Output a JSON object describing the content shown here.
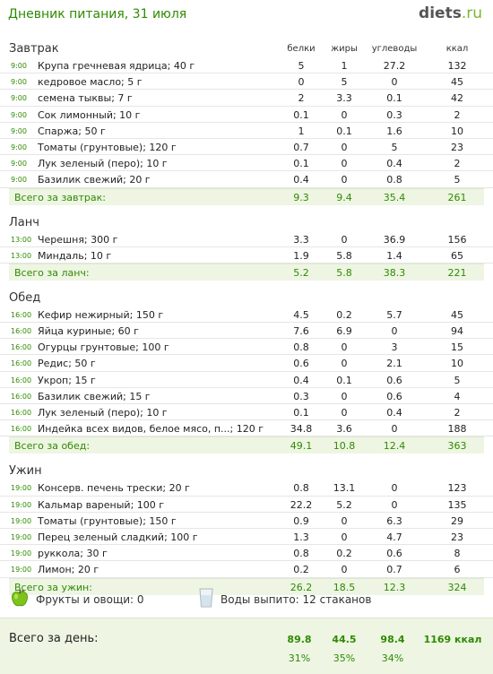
{
  "header": {
    "title": "Дневник питания, 31 июля",
    "logo_main": "diets",
    "logo_tld": ".ru"
  },
  "columns": {
    "protein": "белки",
    "fat": "жиры",
    "carbs": "углеводы",
    "kcal": "ккал"
  },
  "meals": [
    {
      "name": "Завтрак",
      "items": [
        {
          "time": "9:00",
          "name": "Крупа гречневая ядрица; 40 г",
          "p": "5",
          "f": "1",
          "c": "27.2",
          "k": "132"
        },
        {
          "time": "9:00",
          "name": "кедровое масло; 5 г",
          "p": "0",
          "f": "5",
          "c": "0",
          "k": "45"
        },
        {
          "time": "9:00",
          "name": "семена тыквы; 7 г",
          "p": "2",
          "f": "3.3",
          "c": "0.1",
          "k": "42"
        },
        {
          "time": "9:00",
          "name": "Сок лимонный; 10 г",
          "p": "0.1",
          "f": "0",
          "c": "0.3",
          "k": "2"
        },
        {
          "time": "9:00",
          "name": "Спаржа; 50 г",
          "p": "1",
          "f": "0.1",
          "c": "1.6",
          "k": "10"
        },
        {
          "time": "9:00",
          "name": "Томаты (грунтовые); 120 г",
          "p": "0.7",
          "f": "0",
          "c": "5",
          "k": "23"
        },
        {
          "time": "9:00",
          "name": "Лук зеленый (перо); 10 г",
          "p": "0.1",
          "f": "0",
          "c": "0.4",
          "k": "2"
        },
        {
          "time": "9:00",
          "name": "Базилик свежий; 20 г",
          "p": "0.4",
          "f": "0",
          "c": "0.8",
          "k": "5"
        }
      ],
      "total": {
        "label": "Всего за завтрак:",
        "p": "9.3",
        "f": "9.4",
        "c": "35.4",
        "k": "261"
      }
    },
    {
      "name": "Ланч",
      "items": [
        {
          "time": "13:00",
          "name": "Черешня; 300 г",
          "p": "3.3",
          "f": "0",
          "c": "36.9",
          "k": "156"
        },
        {
          "time": "13:00",
          "name": "Миндаль; 10 г",
          "p": "1.9",
          "f": "5.8",
          "c": "1.4",
          "k": "65"
        }
      ],
      "total": {
        "label": "Всего за ланч:",
        "p": "5.2",
        "f": "5.8",
        "c": "38.3",
        "k": "221"
      }
    },
    {
      "name": "Обед",
      "items": [
        {
          "time": "16:00",
          "name": "Кефир нежирный; 150 г",
          "p": "4.5",
          "f": "0.2",
          "c": "5.7",
          "k": "45"
        },
        {
          "time": "16:00",
          "name": "Яйца куриные; 60 г",
          "p": "7.6",
          "f": "6.9",
          "c": "0",
          "k": "94"
        },
        {
          "time": "16:00",
          "name": "Огурцы грунтовые; 100 г",
          "p": "0.8",
          "f": "0",
          "c": "3",
          "k": "15"
        },
        {
          "time": "16:00",
          "name": "Редис; 50 г",
          "p": "0.6",
          "f": "0",
          "c": "2.1",
          "k": "10"
        },
        {
          "time": "16:00",
          "name": "Укроп; 15 г",
          "p": "0.4",
          "f": "0.1",
          "c": "0.6",
          "k": "5"
        },
        {
          "time": "16:00",
          "name": "Базилик свежий; 15 г",
          "p": "0.3",
          "f": "0",
          "c": "0.6",
          "k": "4"
        },
        {
          "time": "16:00",
          "name": "Лук зеленый (перо); 10 г",
          "p": "0.1",
          "f": "0",
          "c": "0.4",
          "k": "2"
        },
        {
          "time": "16:00",
          "name": "Индейка всех видов, белое мясо, п...; 120 г",
          "p": "34.8",
          "f": "3.6",
          "c": "0",
          "k": "188"
        }
      ],
      "total": {
        "label": "Всего за обед:",
        "p": "49.1",
        "f": "10.8",
        "c": "12.4",
        "k": "363"
      }
    },
    {
      "name": "Ужин",
      "items": [
        {
          "time": "19:00",
          "name": "Консерв. печень трески; 20 г",
          "p": "0.8",
          "f": "13.1",
          "c": "0",
          "k": "123"
        },
        {
          "time": "19:00",
          "name": "Кальмар вареный; 100 г",
          "p": "22.2",
          "f": "5.2",
          "c": "0",
          "k": "135"
        },
        {
          "time": "19:00",
          "name": "Томаты (грунтовые); 150 г",
          "p": "0.9",
          "f": "0",
          "c": "6.3",
          "k": "29"
        },
        {
          "time": "19:00",
          "name": "Перец зеленый сладкий; 100 г",
          "p": "1.3",
          "f": "0",
          "c": "4.7",
          "k": "23"
        },
        {
          "time": "19:00",
          "name": "руккола; 30 г",
          "p": "0.8",
          "f": "0.2",
          "c": "0.6",
          "k": "8"
        },
        {
          "time": "19:00",
          "name": "Лимон; 20 г",
          "p": "0.2",
          "f": "0",
          "c": "0.7",
          "k": "6"
        }
      ],
      "total": {
        "label": "Всего за ужин:",
        "p": "26.2",
        "f": "18.5",
        "c": "12.3",
        "k": "324"
      }
    }
  ],
  "extras": {
    "fruits_icon": "green-apple-icon",
    "fruits": "Фрукты и овощи: 0",
    "water_icon": "water-glass-icon",
    "water": "Воды выпито: 12 стаканов"
  },
  "day_total": {
    "label": "Всего за день:",
    "p": "89.8",
    "f": "44.5",
    "c": "98.4",
    "k": "1169 ккал",
    "p_pct": "31%",
    "f_pct": "35%",
    "c_pct": "34%"
  },
  "colors": {
    "accent": "#2e8b00",
    "total_bg": "#eef5e3"
  }
}
